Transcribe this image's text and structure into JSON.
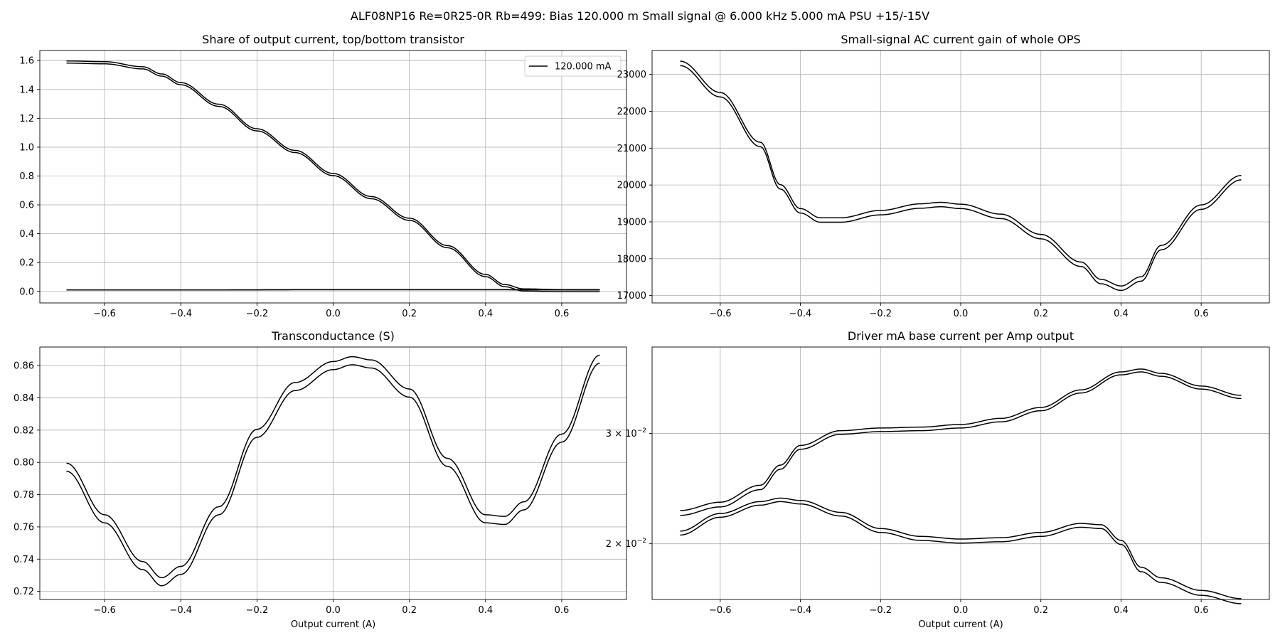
{
  "figure_title": "ALF08NP16 Re=0R25-0R Rb=499: Bias 120.000 m Small signal @ 6.000 kHz 5.000 mA PSU +15/-15V",
  "chart_data": [
    {
      "type": "line",
      "title": "Share of output current, top/bottom transistor",
      "xlabel": "",
      "ylabel": "",
      "xlim": [
        -0.77,
        0.77
      ],
      "ylim": [
        -0.08,
        1.67
      ],
      "xticks": [
        -0.6,
        -0.4,
        -0.2,
        0.0,
        0.2,
        0.4,
        0.6
      ],
      "xtick_labels": [
        "−0.6",
        "−0.4",
        "−0.2",
        "0.0",
        "0.2",
        "0.4",
        "0.6"
      ],
      "yticks": [
        0.0,
        0.2,
        0.4,
        0.6,
        0.8,
        1.0,
        1.2,
        1.4,
        1.6
      ],
      "ytick_labels": [
        "0.0",
        "0.2",
        "0.4",
        "0.6",
        "0.8",
        "1.0",
        "1.2",
        "1.4",
        "1.6"
      ],
      "grid": true,
      "legend": {
        "placement": "upper right",
        "entries": [
          "120.000 mA"
        ]
      },
      "series": [
        {
          "name": "120.000 mA",
          "points": [
            [
              -0.7,
              1.59
            ],
            [
              -0.6,
              1.585
            ],
            [
              -0.5,
              1.55
            ],
            [
              -0.45,
              1.5
            ],
            [
              -0.4,
              1.44
            ],
            [
              -0.3,
              1.29
            ],
            [
              -0.2,
              1.12
            ],
            [
              -0.1,
              0.97
            ],
            [
              0.0,
              0.81
            ],
            [
              0.1,
              0.65
            ],
            [
              0.2,
              0.5
            ],
            [
              0.3,
              0.31
            ],
            [
              0.4,
              0.11
            ],
            [
              0.45,
              0.04
            ],
            [
              0.5,
              0.01
            ],
            [
              0.6,
              0.005
            ],
            [
              0.7,
              0.005
            ]
          ],
          "offset": 0.015
        },
        {
          "points": [
            [
              -0.7,
              0.01
            ],
            [
              -0.35,
              0.01
            ],
            [
              0.0,
              0.012
            ],
            [
              0.35,
              0.012
            ],
            [
              0.7,
              0.01
            ]
          ],
          "offset": 0.0
        }
      ]
    },
    {
      "type": "line",
      "title": "Small-signal AC current gain of whole OPS",
      "xlabel": "",
      "ylabel": "",
      "xlim": [
        -0.77,
        0.77
      ],
      "ylim": [
        16800,
        23650
      ],
      "xticks": [
        -0.6,
        -0.4,
        -0.2,
        0.0,
        0.2,
        0.4,
        0.6
      ],
      "xtick_labels": [
        "−0.6",
        "−0.4",
        "−0.2",
        "0.0",
        "0.2",
        "0.4",
        "0.6"
      ],
      "yticks": [
        17000,
        18000,
        19000,
        20000,
        21000,
        22000,
        23000
      ],
      "ytick_labels": [
        "17000",
        "18000",
        "19000",
        "20000",
        "21000",
        "22000",
        "23000"
      ],
      "grid": true,
      "series": [
        {
          "points": [
            [
              -0.7,
              23300
            ],
            [
              -0.6,
              22450
            ],
            [
              -0.5,
              21100
            ],
            [
              -0.45,
              19950
            ],
            [
              -0.4,
              19300
            ],
            [
              -0.35,
              19050
            ],
            [
              -0.3,
              19050
            ],
            [
              -0.2,
              19250
            ],
            [
              -0.1,
              19430
            ],
            [
              -0.05,
              19470
            ],
            [
              0.0,
              19420
            ],
            [
              0.1,
              19150
            ],
            [
              0.2,
              18600
            ],
            [
              0.3,
              17850
            ],
            [
              0.35,
              17380
            ],
            [
              0.4,
              17200
            ],
            [
              0.45,
              17450
            ],
            [
              0.5,
              18300
            ],
            [
              0.6,
              19400
            ],
            [
              0.7,
              20200
            ]
          ],
          "offset": 120
        }
      ]
    },
    {
      "type": "line",
      "title": "Transconductance (S)",
      "xlabel": "Output current (A)",
      "ylabel": "",
      "xlim": [
        -0.77,
        0.77
      ],
      "ylim": [
        0.715,
        0.8715
      ],
      "xticks": [
        -0.6,
        -0.4,
        -0.2,
        0.0,
        0.2,
        0.4,
        0.6
      ],
      "xtick_labels": [
        "−0.6",
        "−0.4",
        "−0.2",
        "0.0",
        "0.2",
        "0.4",
        "0.6"
      ],
      "yticks": [
        0.72,
        0.74,
        0.76,
        0.78,
        0.8,
        0.82,
        0.84,
        0.86
      ],
      "ytick_labels": [
        "0.72",
        "0.74",
        "0.76",
        "0.78",
        "0.80",
        "0.82",
        "0.84",
        "0.86"
      ],
      "grid": true,
      "series": [
        {
          "points": [
            [
              -0.7,
              0.797
            ],
            [
              -0.6,
              0.765
            ],
            [
              -0.5,
              0.736
            ],
            [
              -0.45,
              0.726
            ],
            [
              -0.4,
              0.733
            ],
            [
              -0.3,
              0.77
            ],
            [
              -0.2,
              0.818
            ],
            [
              -0.1,
              0.847
            ],
            [
              0.0,
              0.86
            ],
            [
              0.05,
              0.863
            ],
            [
              0.1,
              0.861
            ],
            [
              0.2,
              0.843
            ],
            [
              0.3,
              0.8
            ],
            [
              0.4,
              0.765
            ],
            [
              0.45,
              0.764
            ],
            [
              0.5,
              0.773
            ],
            [
              0.6,
              0.815
            ],
            [
              0.7,
              0.864
            ]
          ],
          "offset": 0.005
        }
      ]
    },
    {
      "type": "line",
      "title": "Driver mA base current per Amp output",
      "xlabel": "Output current (A)",
      "ylabel": "",
      "yscale": "log",
      "xlim": [
        -0.77,
        0.77
      ],
      "ylim": [
        0.0163,
        0.0412
      ],
      "xticks": [
        -0.6,
        -0.4,
        -0.2,
        0.0,
        0.2,
        0.4,
        0.6
      ],
      "xtick_labels": [
        "−0.6",
        "−0.4",
        "−0.2",
        "0.0",
        "0.2",
        "0.4",
        "0.6"
      ],
      "yticks": [
        0.02,
        0.03
      ],
      "ytick_labels": [
        {
          "base": "2 × 10",
          "exp": "−2"
        },
        {
          "base": "3 × 10",
          "exp": "−2"
        }
      ],
      "grid": true,
      "series": [
        {
          "points": [
            [
              -0.7,
              0.0224
            ],
            [
              -0.6,
              0.0231
            ],
            [
              -0.5,
              0.0246
            ],
            [
              -0.45,
              0.0265
            ],
            [
              -0.4,
              0.0285
            ],
            [
              -0.3,
              0.0301
            ],
            [
              -0.2,
              0.0304
            ],
            [
              -0.1,
              0.0305
            ],
            [
              0.0,
              0.0308
            ],
            [
              0.1,
              0.0315
            ],
            [
              0.2,
              0.0328
            ],
            [
              0.3,
              0.035
            ],
            [
              0.4,
              0.0374
            ],
            [
              0.45,
              0.0378
            ],
            [
              0.5,
              0.0372
            ],
            [
              0.6,
              0.0355
            ],
            [
              0.7,
              0.0343
            ]
          ],
          "offset": 0.0004
        },
        {
          "points": [
            [
              -0.7,
              0.0208
            ],
            [
              -0.6,
              0.0222
            ],
            [
              -0.5,
              0.0232
            ],
            [
              -0.45,
              0.0235
            ],
            [
              -0.4,
              0.0233
            ],
            [
              -0.3,
              0.0223
            ],
            [
              -0.2,
              0.021
            ],
            [
              -0.1,
              0.0204
            ],
            [
              0.0,
              0.0202
            ],
            [
              0.1,
              0.0203
            ],
            [
              0.2,
              0.0207
            ],
            [
              0.3,
              0.0214
            ],
            [
              0.35,
              0.0213
            ],
            [
              0.4,
              0.0201
            ],
            [
              0.45,
              0.0182
            ],
            [
              0.5,
              0.0175
            ],
            [
              0.6,
              0.0167
            ],
            [
              0.7,
              0.0162
            ]
          ],
          "offset": 0.0003
        }
      ]
    }
  ]
}
